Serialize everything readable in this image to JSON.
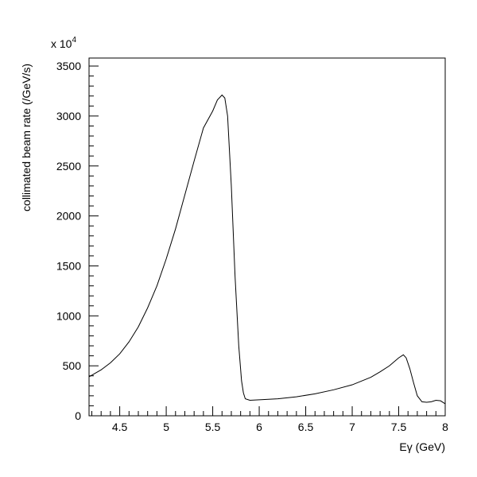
{
  "chart_data": {
    "type": "line",
    "title": "",
    "xlabel": "Eγ (GeV)",
    "ylabel": "collimated beam rate (/GeV/s)",
    "y_multiplier": {
      "base": "x 10",
      "exponent": "4"
    },
    "xlim": [
      4.17,
      8.0
    ],
    "ylim": [
      0,
      3580
    ],
    "x_ticks": [
      4.5,
      5,
      5.5,
      6,
      6.5,
      7,
      7.5,
      8
    ],
    "x_tick_labels": [
      "4.5",
      "5",
      "5.5",
      "6",
      "6.5",
      "7",
      "7.5",
      "8"
    ],
    "y_ticks": [
      0,
      500,
      1000,
      1500,
      2000,
      2500,
      3000,
      3500
    ],
    "y_tick_labels": [
      "0",
      "500",
      "1000",
      "1500",
      "2000",
      "2500",
      "3000",
      "3500"
    ],
    "grid": false,
    "series": [
      {
        "x": [
          4.17,
          4.3,
          4.4,
          4.5,
          4.6,
          4.7,
          4.8,
          4.9,
          5.0,
          5.1,
          5.2,
          5.3,
          5.4,
          5.5,
          5.55,
          5.6,
          5.63,
          5.66,
          5.7,
          5.74,
          5.78,
          5.81,
          5.83,
          5.85,
          5.9,
          6.0,
          6.2,
          6.4,
          6.6,
          6.8,
          7.0,
          7.2,
          7.3,
          7.4,
          7.5,
          7.55,
          7.58,
          7.62,
          7.66,
          7.7,
          7.75,
          7.8,
          7.85,
          7.9,
          7.95,
          8.0
        ],
        "y": [
          390,
          460,
          530,
          620,
          740,
          890,
          1080,
          1300,
          1570,
          1870,
          2210,
          2550,
          2880,
          3050,
          3160,
          3210,
          3180,
          3000,
          2300,
          1400,
          700,
          350,
          230,
          170,
          155,
          160,
          170,
          190,
          220,
          260,
          310,
          385,
          440,
          500,
          580,
          610,
          580,
          470,
          330,
          200,
          140,
          135,
          140,
          155,
          150,
          120
        ]
      }
    ]
  }
}
